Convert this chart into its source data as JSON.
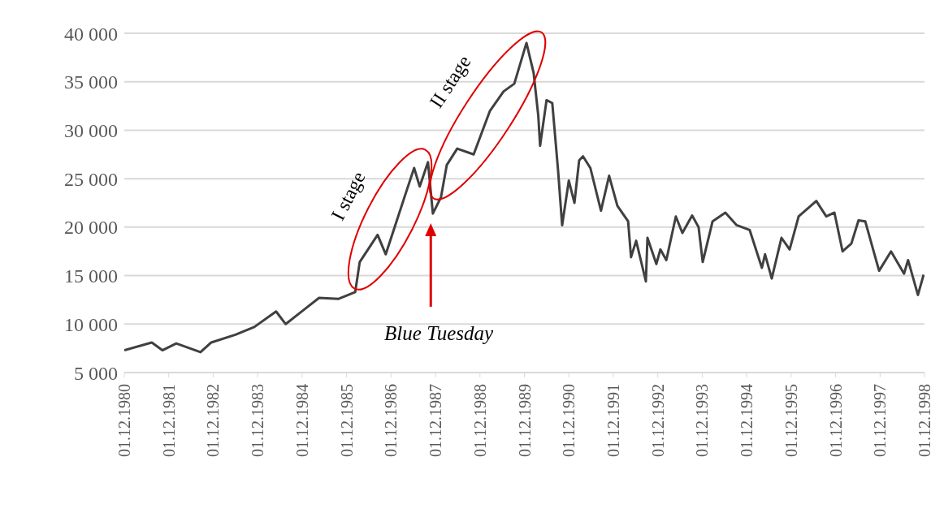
{
  "chart_data": {
    "type": "line",
    "x": [
      "1980-12-01",
      "1981-07-15",
      "1981-10-10",
      "1982-02-01",
      "1982-08-19",
      "1982-11-15",
      "1983-06-02",
      "1983-11-04",
      "1984-05-01",
      "1984-07-19",
      "1984-12-07",
      "1985-04-19",
      "1985-09-27",
      "1986-02-10",
      "1986-03-19",
      "1986-08-13",
      "1986-10-19",
      "1987-04-04",
      "1987-06-09",
      "1987-07-25",
      "1987-10-01",
      "1987-11-10",
      "1988-01-16",
      "1988-03-03",
      "1988-05-28",
      "1988-10-10",
      "1989-02-21",
      "1989-06-13",
      "1989-09-09",
      "1989-12-18",
      "1990-02-15",
      "1990-03-25",
      "1990-04-09",
      "1990-06-01",
      "1990-07-18",
      "1990-09-04",
      "1990-10-07",
      "1990-12-01",
      "1991-01-16",
      "1991-02-24",
      "1991-03-28",
      "1991-05-27",
      "1991-08-22",
      "1991-10-28",
      "1992-01-04",
      "1992-04-01",
      "1992-04-25",
      "1992-06-06",
      "1992-08-25",
      "1992-09-07",
      "1992-11-19",
      "1992-12-22",
      "1993-02-09",
      "1993-04-28",
      "1993-06-21",
      "1993-09-09",
      "1993-11-01",
      "1993-12-05",
      "1994-02-24",
      "1994-06-09",
      "1994-09-10",
      "1994-12-26",
      "1995-04-05",
      "1995-05-01",
      "1995-06-25",
      "1995-09-13",
      "1995-11-19",
      "1996-02-01",
      "1996-06-25",
      "1996-09-15",
      "1996-11-21",
      "1997-01-27",
      "1997-04-09",
      "1997-06-07",
      "1997-08-01",
      "1997-11-23",
      "1998-03-01",
      "1998-06-16",
      "1998-07-19",
      "1998-10-08",
      "1998-11-24"
    ],
    "series": [
      {
        "color": "#404040",
        "values": [
          7300,
          8100,
          7300,
          8000,
          7100,
          8100,
          8900,
          9700,
          11300,
          10000,
          11400,
          12700,
          12600,
          13300,
          16400,
          19200,
          17200,
          23600,
          26100,
          24200,
          26700,
          21400,
          23100,
          26400,
          28100,
          27500,
          32000,
          34000,
          34800,
          39000,
          35900,
          31500,
          28400,
          33100,
          32800,
          25800,
          20200,
          24800,
          22500,
          26900,
          27300,
          26100,
          21700,
          25300,
          22200,
          20600,
          16900,
          18600,
          14400,
          18900,
          16200,
          17700,
          16600,
          21100,
          19400,
          21200,
          20000,
          16400,
          20600,
          21500,
          20200,
          19700,
          15800,
          17200,
          14700,
          18900,
          17700,
          21100,
          22700,
          21100,
          21500,
          17500,
          18300,
          20700,
          20600,
          15500,
          17500,
          15200,
          16600,
          13000,
          15100
        ]
      }
    ],
    "xlim": [
      "1980-12-01",
      "1998-12-01"
    ],
    "xticks": [
      {
        "value": "1980-12-01",
        "label": "01.12.1980"
      },
      {
        "value": "1981-12-01",
        "label": "01.12.1981"
      },
      {
        "value": "1982-12-01",
        "label": "01.12.1982"
      },
      {
        "value": "1983-12-01",
        "label": "01.12.1983"
      },
      {
        "value": "1984-12-01",
        "label": "01.12.1984"
      },
      {
        "value": "1985-12-01",
        "label": "01.12.1985"
      },
      {
        "value": "1986-12-01",
        "label": "01.12.1986"
      },
      {
        "value": "1987-12-01",
        "label": "01.12.1987"
      },
      {
        "value": "1988-12-01",
        "label": "01.12.1988"
      },
      {
        "value": "1989-12-01",
        "label": "01.12.1989"
      },
      {
        "value": "1990-12-01",
        "label": "01.12.1990"
      },
      {
        "value": "1991-12-01",
        "label": "01.12.1991"
      },
      {
        "value": "1992-12-01",
        "label": "01.12.1992"
      },
      {
        "value": "1993-12-01",
        "label": "01.12.1993"
      },
      {
        "value": "1994-12-01",
        "label": "01.12.1994"
      },
      {
        "value": "1995-12-01",
        "label": "01.12.1995"
      },
      {
        "value": "1996-12-01",
        "label": "01.12.1996"
      },
      {
        "value": "1997-12-01",
        "label": "01.12.1997"
      },
      {
        "value": "1998-12-01",
        "label": "01.12.1998"
      }
    ],
    "ylim": [
      5000,
      40000
    ],
    "yticks": [
      {
        "value": 5000,
        "label": "5 000"
      },
      {
        "value": 10000,
        "label": "10 000"
      },
      {
        "value": 15000,
        "label": "15 000"
      },
      {
        "value": 20000,
        "label": "20 000"
      },
      {
        "value": 25000,
        "label": "25 000"
      },
      {
        "value": 30000,
        "label": "30 000"
      },
      {
        "value": 35000,
        "label": "35 000"
      },
      {
        "value": 40000,
        "label": "40 000"
      }
    ],
    "grid": "y",
    "line_style": "solid",
    "marker": "none",
    "legend": false,
    "annotations": [
      "I stage",
      "II stage",
      "Blue Tuesday"
    ]
  }
}
